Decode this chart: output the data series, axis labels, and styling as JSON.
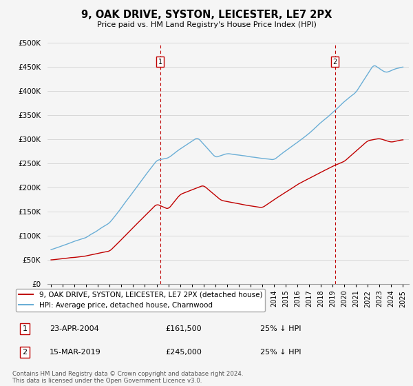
{
  "title": "9, OAK DRIVE, SYSTON, LEICESTER, LE7 2PX",
  "subtitle": "Price paid vs. HM Land Registry's House Price Index (HPI)",
  "ylabel_ticks": [
    "£0",
    "£50K",
    "£100K",
    "£150K",
    "£200K",
    "£250K",
    "£300K",
    "£350K",
    "£400K",
    "£450K",
    "£500K"
  ],
  "ytick_values": [
    0,
    50000,
    100000,
    150000,
    200000,
    250000,
    300000,
    350000,
    400000,
    450000,
    500000
  ],
  "ylim": [
    0,
    500000
  ],
  "legend_line1": "9, OAK DRIVE, SYSTON, LEICESTER, LE7 2PX (detached house)",
  "legend_line2": "HPI: Average price, detached house, Charnwood",
  "sale1_date": "23-APR-2004",
  "sale1_price": 161500,
  "sale1_label": "1",
  "sale1_x": 2004.3,
  "sale1_marker_y": 460000,
  "sale2_date": "15-MAR-2019",
  "sale2_price": 245000,
  "sale2_label": "2",
  "sale2_x": 2019.2,
  "sale2_marker_y": 460000,
  "footnote": "Contains HM Land Registry data © Crown copyright and database right 2024.\nThis data is licensed under the Open Government Licence v3.0.",
  "hpi_color": "#6aaed6",
  "sale_color": "#c00000",
  "vline_color": "#c00000",
  "background_color": "#f5f5f5",
  "grid_color": "#cccccc",
  "xlim_left": 1994.7,
  "xlim_right": 2025.5
}
